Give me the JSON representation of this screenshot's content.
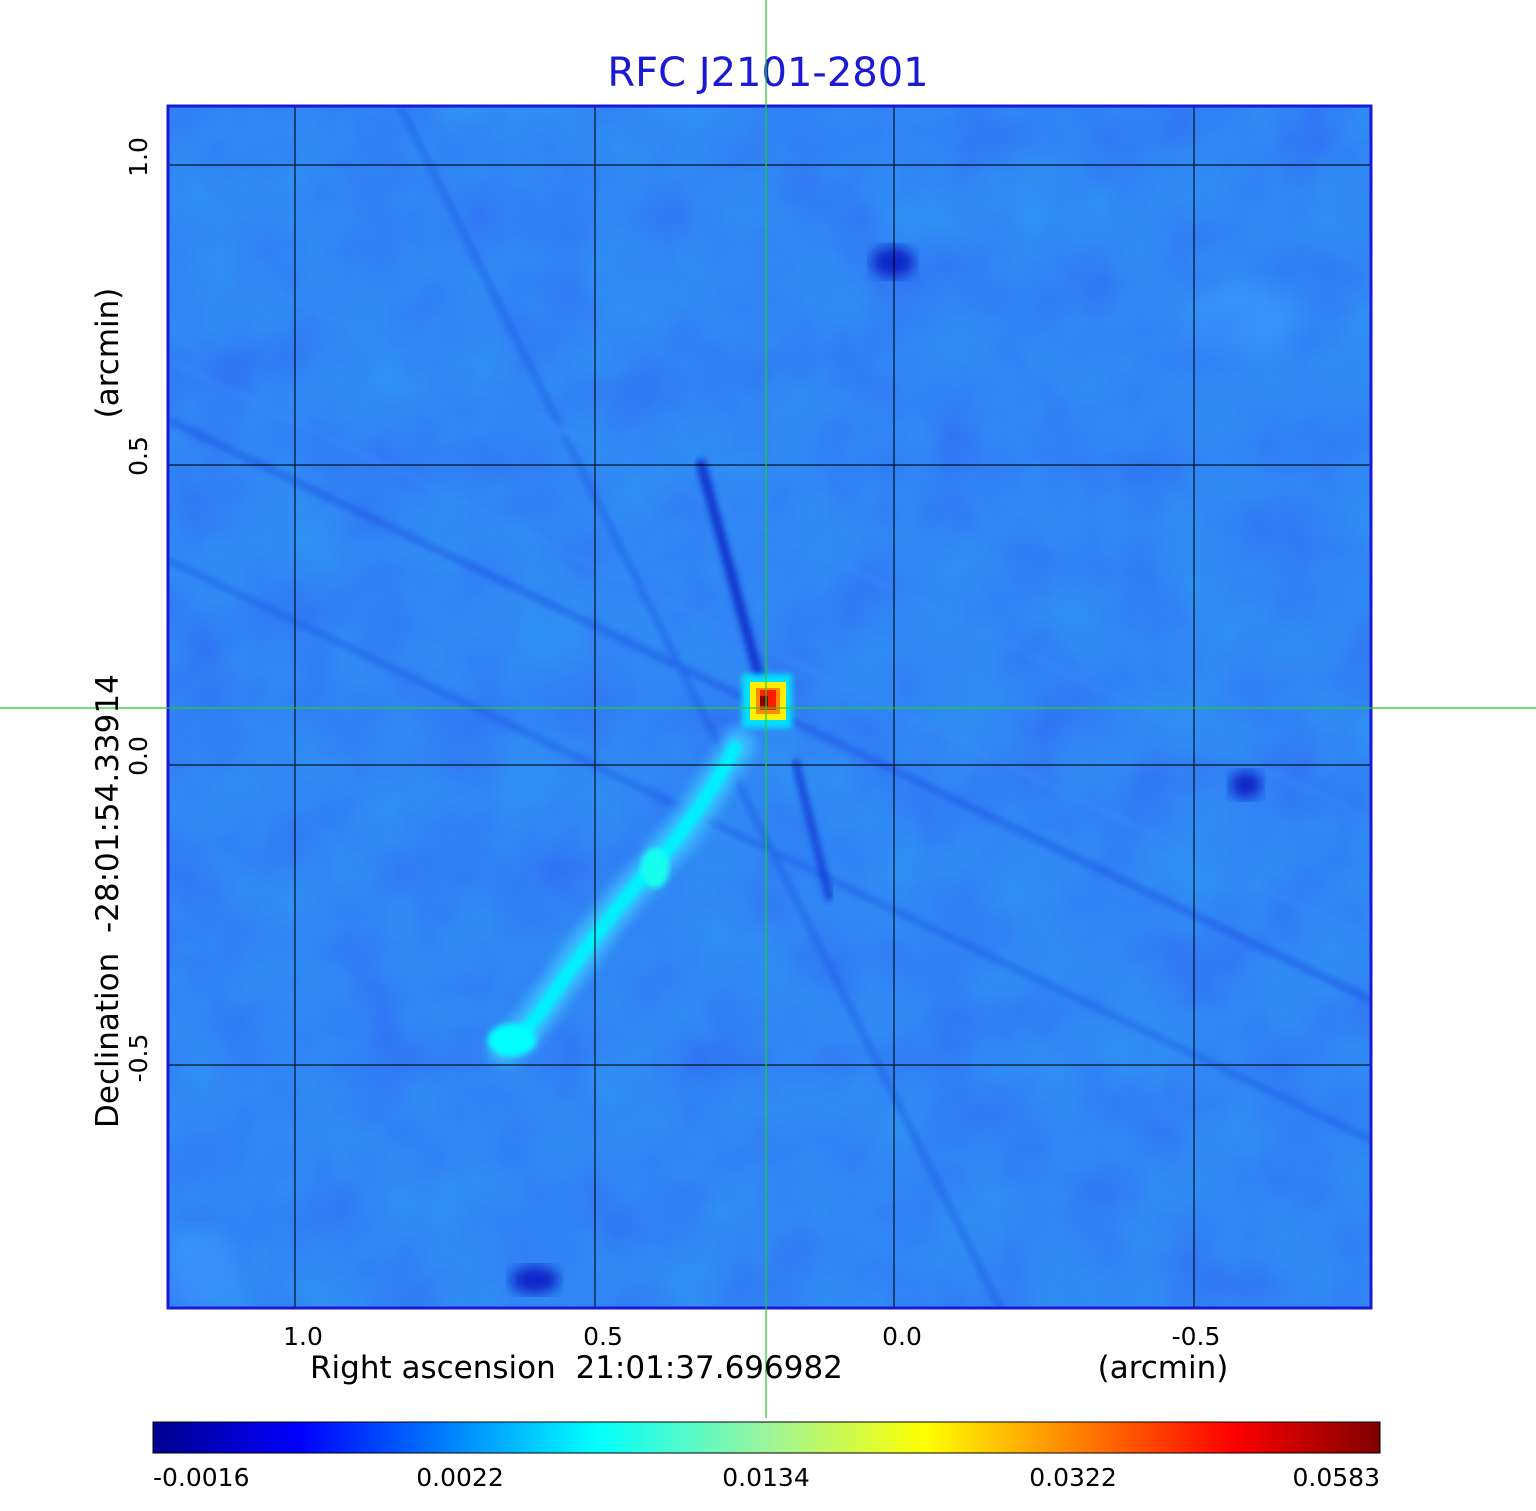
{
  "image": {
    "title": "RFC J2101-2801",
    "x_axis": {
      "label": "Right ascension  21:01:37.696982",
      "unit": "(arcmin)",
      "ticks": [
        {
          "value": 1.0,
          "label": "1.0"
        },
        {
          "value": 0.5,
          "label": "0.5"
        },
        {
          "value": 0.0,
          "label": "0.0"
        },
        {
          "value": -0.5,
          "label": "-0.5"
        }
      ]
    },
    "y_axis": {
      "label": "Declination  -28:01:54.33914",
      "unit": "(arcmin)",
      "ticks": [
        {
          "value": 1.0,
          "label": "1.0"
        },
        {
          "value": 0.5,
          "label": "0.5"
        },
        {
          "value": 0.0,
          "label": "0.0"
        },
        {
          "value": -0.5,
          "label": "-0.5"
        }
      ]
    },
    "colorbar": {
      "tick_labels": [
        "-0.0016",
        "0.0022",
        "0.0134",
        "0.0322",
        "0.0583"
      ],
      "colormap": "jet",
      "colors": [
        "#00008f",
        "#0000ff",
        "#00ffff",
        "#ffff00",
        "#ff0000",
        "#800000"
      ]
    },
    "colors": {
      "title": "#1a1ad6",
      "background_map": "#1c5cf0",
      "grid": "#000000",
      "crosshair": "#22cc22",
      "frame": "#1a1ad6"
    },
    "features": {
      "core_peak": "bright compact red core near map center",
      "jet": "faint cyan jet extending toward lower-left"
    }
  }
}
